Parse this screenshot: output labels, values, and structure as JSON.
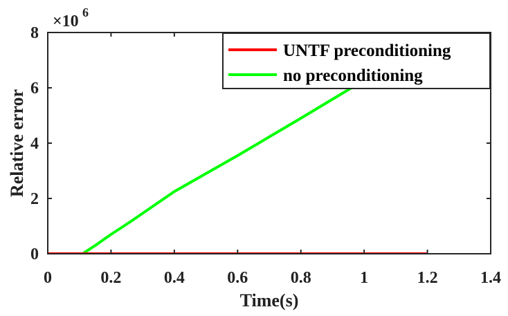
{
  "chart_data": {
    "type": "line",
    "xlabel": "Time(s)",
    "ylabel": "Relative error",
    "y_exponent_base": "×10",
    "y_exponent_power": "6",
    "xlim": [
      0,
      1.4
    ],
    "ylim": [
      0,
      8000000
    ],
    "x_ticks": [
      0,
      0.2,
      0.4,
      0.6,
      0.8,
      1,
      1.2,
      1.4
    ],
    "x_tick_labels": [
      "0",
      "0.2",
      "0.4",
      "0.6",
      "0.8",
      "1",
      "1.2",
      "1.4"
    ],
    "y_ticks": [
      0,
      2000000,
      4000000,
      6000000,
      8000000
    ],
    "y_tick_labels": [
      "0",
      "2",
      "4",
      "6",
      "8"
    ],
    "grid": false,
    "legend_position": "top-right",
    "series": [
      {
        "name": "UNTF preconditioning",
        "color": "#ff0000",
        "x": [
          0,
          0.2,
          0.4,
          0.6,
          0.8,
          1.0,
          1.2
        ],
        "y": [
          0,
          0,
          0,
          0,
          0,
          0,
          0
        ]
      },
      {
        "name": "no preconditioning",
        "color": "#00ff00",
        "x": [
          0,
          0.11,
          0.15,
          0.2,
          0.26,
          0.4,
          0.6,
          0.8,
          0.96
        ],
        "y": [
          0,
          0,
          300000,
          700000,
          1150000,
          2250000,
          3550000,
          4900000,
          6000000
        ]
      }
    ]
  }
}
